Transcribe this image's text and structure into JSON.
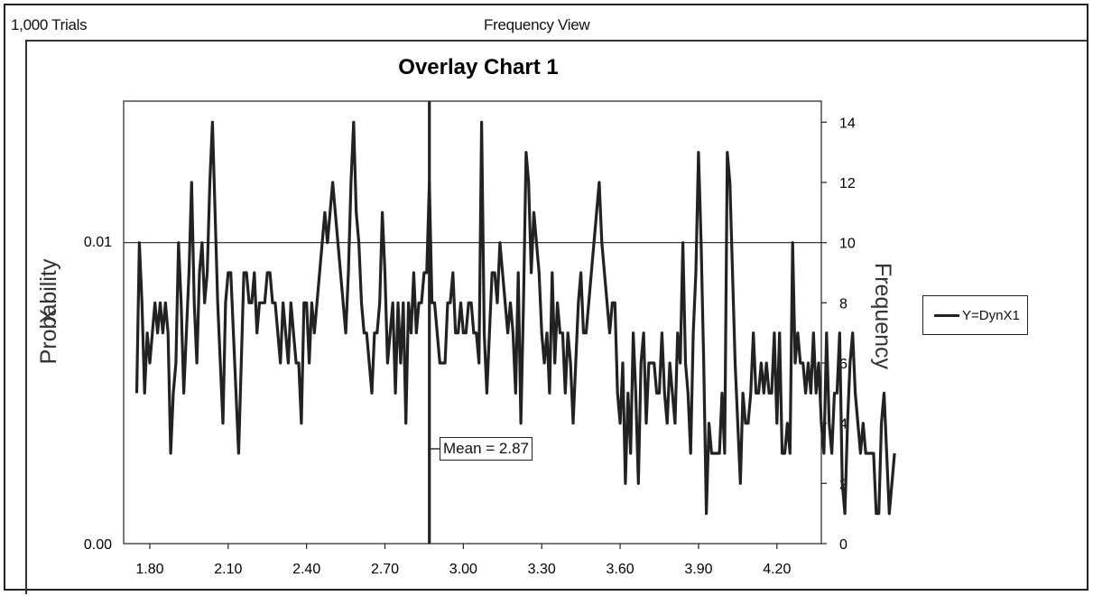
{
  "header": {
    "trials": "1,000 Trials",
    "view": "Frequency View"
  },
  "legend": {
    "label": "Y=DynX1"
  },
  "mean_label": "Mean = 2.87",
  "chart_data": {
    "type": "line",
    "title": "Overlay Chart 1",
    "ylabel_left": "Probability",
    "ylabel_left_overlap": "X",
    "ylabel_right": "Frequency",
    "xlabel": "",
    "x_ticks": [
      "1.80",
      "2.10",
      "2.40",
      "2.70",
      "3.00",
      "3.30",
      "3.60",
      "3.90",
      "4.20"
    ],
    "x_tick_values": [
      1.8,
      2.1,
      2.4,
      2.7,
      3.0,
      3.3,
      3.6,
      3.9,
      4.2
    ],
    "left_ticks": [
      "0.01",
      "0.00"
    ],
    "right_ticks": [
      "14",
      "12",
      "10",
      "8",
      "6",
      "4",
      "2",
      "0"
    ],
    "right_tick_values": [
      14,
      12,
      10,
      8,
      6,
      4,
      2,
      0
    ],
    "xlim": [
      1.7,
      4.37
    ],
    "ylim": [
      0,
      14.7
    ],
    "mean": 2.87,
    "series": [
      {
        "name": "Y=DynX1",
        "x_start": 1.75,
        "x_step": 0.01,
        "values": [
          5,
          10,
          8,
          5,
          7,
          6,
          7,
          8,
          7,
          8,
          7,
          8,
          7,
          3,
          5,
          6,
          10,
          8,
          5,
          7,
          9,
          12,
          8,
          6,
          9,
          10,
          8,
          9,
          12,
          14,
          11,
          8,
          6,
          4,
          8,
          9,
          9,
          7,
          5,
          3,
          6,
          9,
          9,
          8,
          8,
          9,
          7,
          8,
          8,
          8,
          9,
          9,
          8,
          8,
          7,
          6,
          8,
          7,
          6,
          8,
          7,
          6,
          6,
          4,
          8,
          8,
          6,
          8,
          7,
          8,
          9,
          10,
          11,
          10,
          11,
          12,
          11,
          10,
          9,
          8,
          7,
          9,
          12,
          14,
          11,
          10,
          8,
          7,
          7,
          6,
          5,
          7,
          7,
          8,
          11,
          9,
          6,
          7,
          8,
          5,
          8,
          6,
          8,
          4,
          8,
          7,
          9,
          7,
          8,
          8,
          9,
          9,
          12,
          8,
          8,
          7,
          6,
          6,
          6,
          8,
          8,
          9,
          7,
          7,
          8,
          7,
          7,
          8,
          8,
          7,
          7,
          6,
          14,
          7,
          5,
          7,
          9,
          9,
          8,
          10,
          9,
          8,
          7,
          8,
          7,
          5,
          9,
          4,
          8,
          13,
          12,
          9,
          11,
          10,
          9,
          7,
          6,
          7,
          5,
          9,
          6,
          8,
          7,
          7,
          5,
          7,
          6,
          4,
          6,
          8,
          9,
          7,
          7,
          8,
          9,
          10,
          11,
          12,
          10,
          9,
          8,
          7,
          8,
          8,
          5,
          4,
          6,
          2,
          5,
          3,
          7,
          5,
          2,
          6,
          7,
          4,
          6,
          6,
          6,
          5,
          5,
          7,
          5,
          4,
          6,
          5,
          4,
          7,
          6,
          10,
          6,
          5,
          3,
          7,
          9,
          13,
          10,
          6,
          1,
          4,
          3,
          3,
          3,
          3,
          5,
          3,
          13,
          12,
          9,
          6,
          4,
          2,
          5,
          4,
          4,
          5,
          7,
          5,
          5,
          6,
          5,
          6,
          5,
          5,
          7,
          4,
          7,
          3,
          3,
          4,
          3,
          10,
          6,
          7,
          6,
          6,
          5,
          6,
          5,
          7,
          5,
          6,
          4,
          3,
          7,
          4,
          3,
          5,
          5,
          7,
          2,
          1,
          4,
          6,
          7,
          5,
          4,
          3,
          4,
          3,
          3,
          3,
          3,
          1,
          1,
          4,
          5,
          3,
          1,
          2,
          3
        ]
      }
    ],
    "grid": false,
    "legend_position": "right"
  }
}
